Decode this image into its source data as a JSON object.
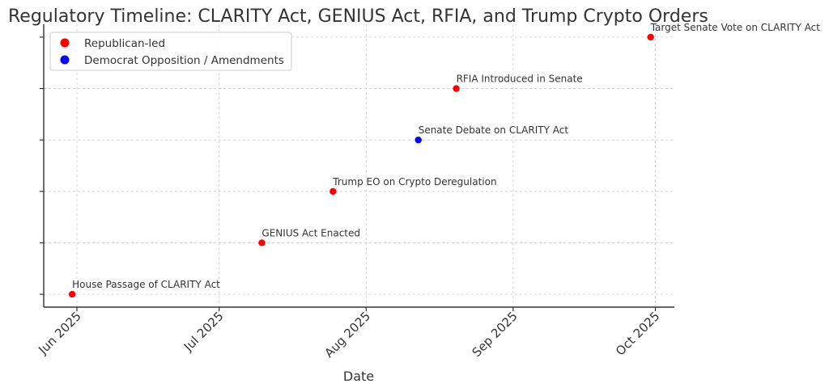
{
  "chart_data": {
    "type": "scatter",
    "title": "Regulatory Timeline: CLARITY Act, GENIUS Act, RFIA, and Trump Crypto Orders",
    "xlabel": "Date",
    "ylabel": "",
    "x_axis_type": "date",
    "xlim": [
      "2025-05-25",
      "2025-10-05"
    ],
    "ylim": [
      -0.25,
      5.25
    ],
    "x_ticks": [
      "2025-06-01",
      "2025-07-01",
      "2025-08-01",
      "2025-09-01",
      "2025-10-01"
    ],
    "x_tick_labels": [
      "Jun 2025",
      "Jul 2025",
      "Aug 2025",
      "Sep 2025",
      "Oct 2025"
    ],
    "y_ticks": [
      0,
      1,
      2,
      3,
      4,
      5
    ],
    "grid": true,
    "legend_position": "top-left",
    "series": [
      {
        "name": "Republican-led",
        "color": "#ff0000",
        "points": [
          {
            "date": "2025-05-31",
            "y": 0,
            "label": "House Passage of CLARITY Act"
          },
          {
            "date": "2025-07-10",
            "y": 1,
            "label": "GENIUS Act Enacted"
          },
          {
            "date": "2025-07-25",
            "y": 2,
            "label": "Trump EO on Crypto Deregulation"
          },
          {
            "date": "2025-08-20",
            "y": 4,
            "label": "RFIA Introduced in Senate"
          },
          {
            "date": "2025-09-30",
            "y": 5,
            "label": "Target Senate Vote on CLARITY Act"
          }
        ]
      },
      {
        "name": "Democrat Opposition / Amendments",
        "color": "#0000ff",
        "points": [
          {
            "date": "2025-08-12",
            "y": 3,
            "label": "Senate Debate on CLARITY Act"
          }
        ]
      }
    ]
  }
}
